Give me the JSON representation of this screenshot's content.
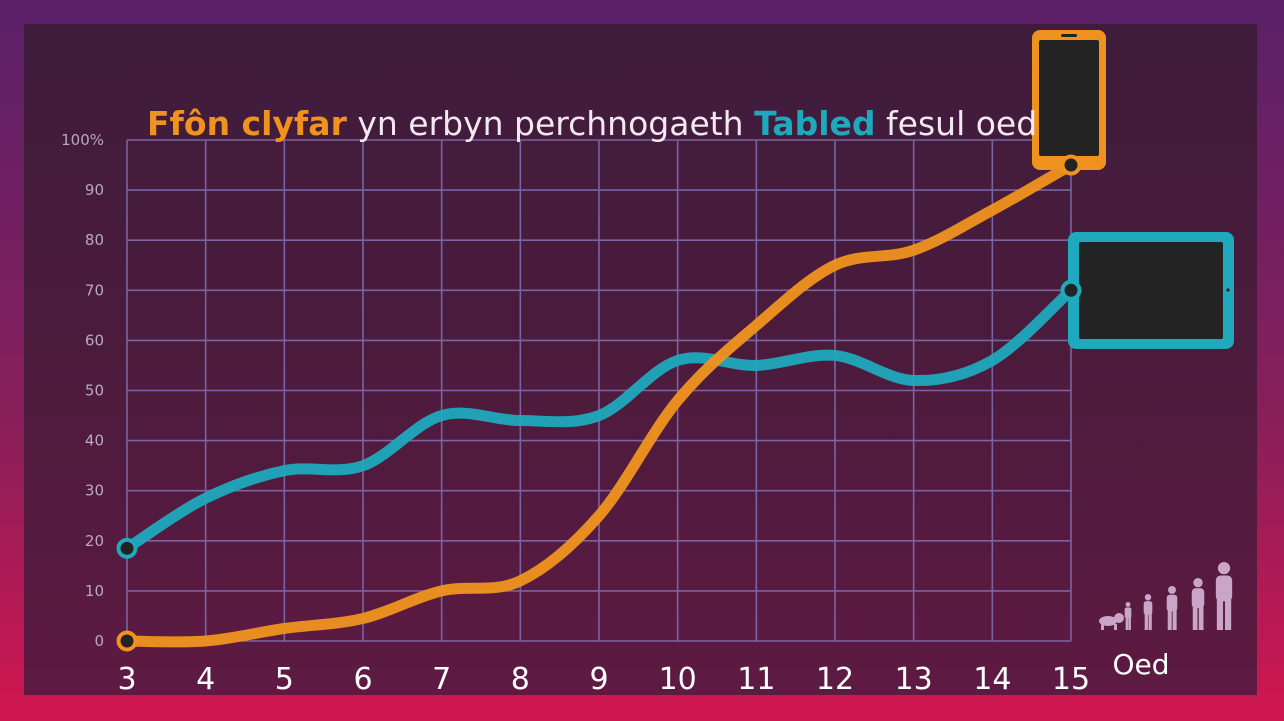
{
  "title": {
    "phone_part": "Ffôn clyfar",
    "middle_part": " yn erbyn perchnogaeth ",
    "tablet_part": "Tabled",
    "end_part": " fesul oed"
  },
  "colors": {
    "phone": "#f0931e",
    "tablet": "#1fa9bd",
    "grid": "#7a64a4"
  },
  "icons": [
    "smartphone-icon",
    "tablet-icon",
    "human-growth-icon"
  ],
  "chart_data": {
    "type": "line",
    "title": "Ffôn clyfar yn erbyn perchnogaeth Tabled fesul oed",
    "xlabel": "Oed",
    "ylabel": "",
    "x": [
      3,
      4,
      5,
      6,
      7,
      8,
      9,
      10,
      11,
      12,
      13,
      14,
      15
    ],
    "ylim": [
      0,
      100
    ],
    "y_ticks": [
      "0",
      "10",
      "20",
      "30",
      "40",
      "50",
      "60",
      "70",
      "80",
      "90",
      "100%"
    ],
    "series": [
      {
        "name": "Ffôn clyfar",
        "values": [
          0,
          0,
          2.5,
          4.5,
          10,
          12,
          25,
          48,
          63,
          75,
          78,
          86,
          95
        ]
      },
      {
        "name": "Tabled",
        "values": [
          18.5,
          28.5,
          34,
          35,
          45,
          44,
          45,
          56,
          55,
          57,
          52,
          56,
          70
        ]
      }
    ]
  }
}
